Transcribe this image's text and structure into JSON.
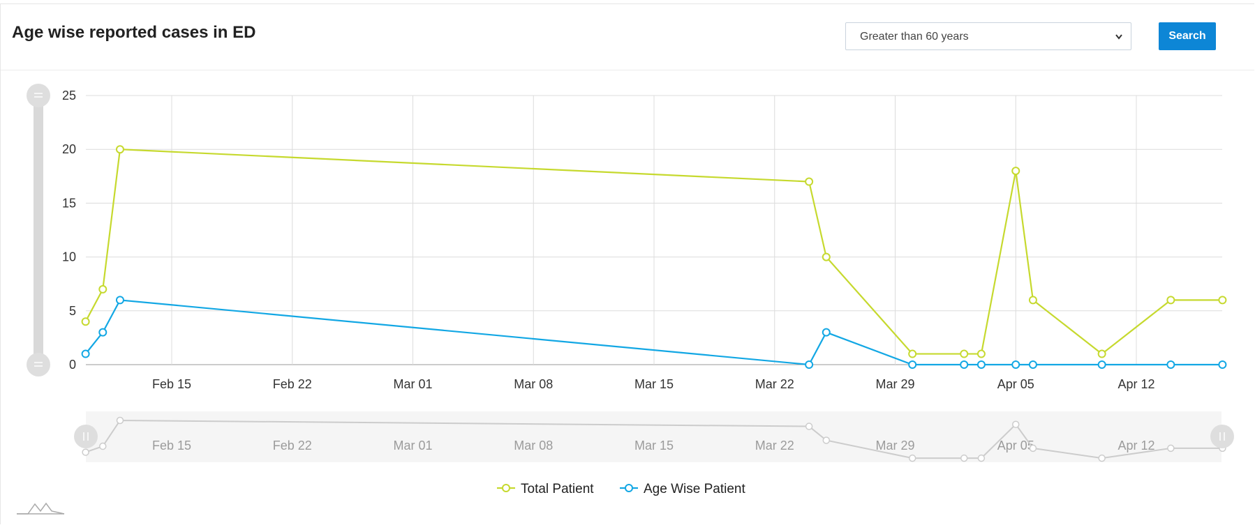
{
  "header": {
    "title": "Age wise reported cases in ED",
    "filter_value": "Greater than 60 years",
    "search_label": "Search"
  },
  "chart_data": {
    "type": "line",
    "x_type": "date",
    "x_ticks": [
      "Feb 15",
      "Feb 22",
      "Mar 01",
      "Mar 08",
      "Mar 15",
      "Mar 22",
      "Mar 29",
      "Apr 05",
      "Apr 12"
    ],
    "x": [
      "Feb 10",
      "Feb 11",
      "Feb 12",
      "Mar 24",
      "Mar 25",
      "Mar 30",
      "Apr 02",
      "Apr 03",
      "Apr 05",
      "Apr 06",
      "Apr 10",
      "Apr 14",
      "Apr 17"
    ],
    "ylim": [
      0,
      25
    ],
    "y_ticks": [
      0,
      5,
      10,
      15,
      20,
      25
    ],
    "grid": true,
    "legend_position": "bottom-center",
    "series": [
      {
        "name": "Total Patient",
        "color": "#c6d92e",
        "values": [
          4,
          7,
          20,
          17,
          10,
          1,
          1,
          1,
          18,
          6,
          1,
          6,
          6
        ]
      },
      {
        "name": "Age Wise Patient",
        "color": "#12a7e4",
        "values": [
          1,
          3,
          6,
          0,
          3,
          0,
          0,
          0,
          0,
          0,
          0,
          0,
          0
        ]
      }
    ]
  }
}
